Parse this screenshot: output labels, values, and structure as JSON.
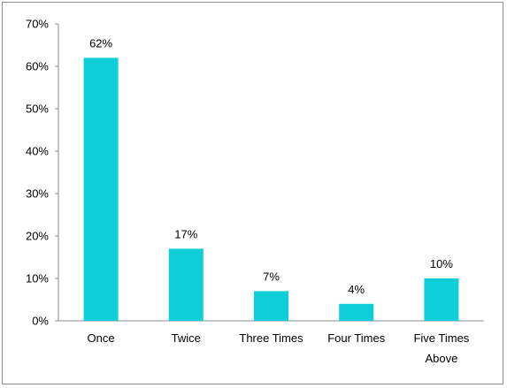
{
  "chart_data": {
    "type": "bar",
    "categories": [
      [
        "Once"
      ],
      [
        "Twice"
      ],
      [
        "Three Times"
      ],
      [
        "Four Times"
      ],
      [
        "Five Times",
        "Above"
      ]
    ],
    "values": [
      62,
      17,
      7,
      4,
      10
    ],
    "data_labels": [
      "62%",
      "17%",
      "7%",
      "4%",
      "10%"
    ],
    "title": "",
    "xlabel": "",
    "ylabel": "",
    "ylim": [
      0,
      70
    ],
    "yticks": [
      "0%",
      "10%",
      "20%",
      "30%",
      "40%",
      "50%",
      "60%",
      "70%"
    ],
    "grid": false,
    "legend": "none",
    "colors": {
      "bar": "#0ecfd8",
      "axis": "#8c8c8c",
      "frame": "#8c8c8c"
    }
  }
}
